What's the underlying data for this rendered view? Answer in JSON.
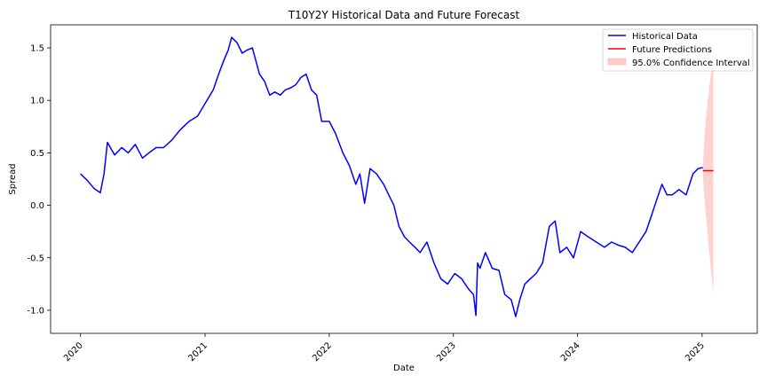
{
  "chart_data": {
    "type": "line",
    "title": "T10Y2Y Historical Data and Future Forecast",
    "xlabel": "Date",
    "ylabel": "Spread",
    "xlim": [
      "2019-10-05",
      "2025-06-12"
    ],
    "ylim": [
      -1.22,
      1.72
    ],
    "x_ticks": [
      "2020",
      "2021",
      "2022",
      "2023",
      "2024",
      "2025"
    ],
    "y_ticks": [
      "-1.0",
      "-0.5",
      "0.0",
      "0.5",
      "1.0",
      "1.5"
    ],
    "grid": false,
    "legend_position": "top-right",
    "colors": {
      "historical": "#0000ff",
      "prediction": "#ff0000",
      "interval": "#ffcccc"
    },
    "series": [
      {
        "name": "Historical Data",
        "x": [
          "2020-01-01",
          "2020-01-20",
          "2020-02-10",
          "2020-02-28",
          "2020-03-10",
          "2020-03-20",
          "2020-04-10",
          "2020-05-01",
          "2020-05-20",
          "2020-06-10",
          "2020-07-01",
          "2020-07-20",
          "2020-08-10",
          "2020-09-01",
          "2020-09-25",
          "2020-10-20",
          "2020-11-15",
          "2020-12-10",
          "2021-01-01",
          "2021-01-25",
          "2021-02-10",
          "2021-02-25",
          "2021-03-10",
          "2021-03-20",
          "2021-04-05",
          "2021-04-20",
          "2021-05-05",
          "2021-05-20",
          "2021-06-10",
          "2021-06-25",
          "2021-07-10",
          "2021-07-25",
          "2021-08-10",
          "2021-08-25",
          "2021-09-10",
          "2021-09-25",
          "2021-10-10",
          "2021-10-25",
          "2021-11-10",
          "2021-11-25",
          "2021-12-10",
          "2022-01-01",
          "2022-01-20",
          "2022-02-10",
          "2022-03-01",
          "2022-03-20",
          "2022-04-01",
          "2022-04-15",
          "2022-05-01",
          "2022-05-20",
          "2022-06-10",
          "2022-06-25",
          "2022-07-10",
          "2022-07-25",
          "2022-08-10",
          "2022-08-25",
          "2022-09-10",
          "2022-09-25",
          "2022-10-15",
          "2022-11-05",
          "2022-11-25",
          "2022-12-15",
          "2023-01-05",
          "2023-01-25",
          "2023-02-15",
          "2023-03-01",
          "2023-03-08",
          "2023-03-13",
          "2023-03-20",
          "2023-04-05",
          "2023-04-25",
          "2023-05-15",
          "2023-06-01",
          "2023-06-20",
          "2023-07-03",
          "2023-07-15",
          "2023-07-30",
          "2023-08-15",
          "2023-09-01",
          "2023-09-20",
          "2023-10-10",
          "2023-10-27",
          "2023-11-10",
          "2023-11-30",
          "2023-12-20",
          "2024-01-10",
          "2024-02-01",
          "2024-02-25",
          "2024-03-20",
          "2024-04-10",
          "2024-04-30",
          "2024-05-20",
          "2024-06-10",
          "2024-06-30",
          "2024-07-20",
          "2024-08-05",
          "2024-08-20",
          "2024-09-05",
          "2024-09-20",
          "2024-10-05",
          "2024-10-25",
          "2024-11-15",
          "2024-12-05",
          "2024-12-20",
          "2025-01-03"
        ],
        "values": [
          0.3,
          0.24,
          0.16,
          0.12,
          0.3,
          0.6,
          0.48,
          0.55,
          0.5,
          0.58,
          0.45,
          0.5,
          0.55,
          0.55,
          0.62,
          0.72,
          0.8,
          0.85,
          0.97,
          1.1,
          1.25,
          1.38,
          1.48,
          1.6,
          1.55,
          1.45,
          1.48,
          1.5,
          1.25,
          1.18,
          1.05,
          1.08,
          1.05,
          1.1,
          1.12,
          1.15,
          1.22,
          1.25,
          1.1,
          1.05,
          0.8,
          0.8,
          0.68,
          0.5,
          0.38,
          0.2,
          0.3,
          0.02,
          0.35,
          0.3,
          0.2,
          0.1,
          0.0,
          -0.2,
          -0.3,
          -0.35,
          -0.4,
          -0.45,
          -0.35,
          -0.55,
          -0.7,
          -0.75,
          -0.65,
          -0.7,
          -0.8,
          -0.85,
          -1.05,
          -0.55,
          -0.6,
          -0.45,
          -0.6,
          -0.62,
          -0.85,
          -0.9,
          -1.06,
          -0.9,
          -0.75,
          -0.7,
          -0.65,
          -0.55,
          -0.2,
          -0.15,
          -0.45,
          -0.4,
          -0.5,
          -0.25,
          -0.3,
          -0.35,
          -0.4,
          -0.35,
          -0.38,
          -0.4,
          -0.45,
          -0.35,
          -0.25,
          -0.1,
          0.05,
          0.2,
          0.1,
          0.1,
          0.15,
          0.1,
          0.3,
          0.35,
          0.36
        ]
      },
      {
        "name": "Future Predictions",
        "x": [
          "2025-01-03",
          "2025-02-03"
        ],
        "values": [
          0.33,
          0.33
        ]
      },
      {
        "name": "95.0% Confidence Interval",
        "x": [
          "2025-01-03",
          "2025-01-08",
          "2025-01-13",
          "2025-01-18",
          "2025-01-23",
          "2025-01-28",
          "2025-02-03"
        ],
        "lower": [
          0.3,
          0.05,
          -0.12,
          -0.3,
          -0.48,
          -0.66,
          -0.84
        ],
        "upper": [
          0.36,
          0.65,
          0.85,
          1.0,
          1.15,
          1.28,
          1.4
        ]
      }
    ]
  }
}
